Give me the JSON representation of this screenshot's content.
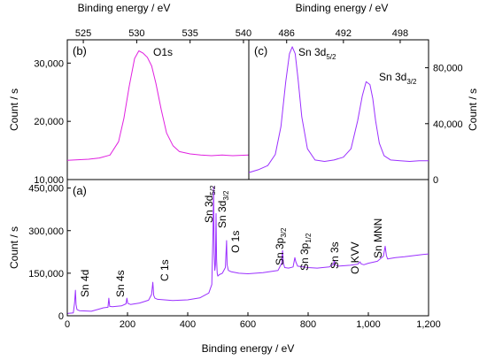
{
  "chart_data": [
    {
      "panel": "(a)",
      "type": "line",
      "xlabel": "Binding energy / eV",
      "ylabel": "Count / s",
      "xlim": [
        0,
        1200
      ],
      "ylim": [
        0,
        480000
      ],
      "x_ticks": [
        0,
        200,
        400,
        600,
        800,
        1000,
        1200
      ],
      "x_tick_labels": [
        "0",
        "200",
        "400",
        "600",
        "800",
        "1,000",
        "1,200"
      ],
      "y_ticks": [
        0,
        150000,
        300000,
        450000
      ],
      "y_tick_labels": [
        "0",
        "150,000",
        "300,000",
        "450,000"
      ],
      "color": "#9B30FF",
      "series": [
        {
          "x": [
            0,
            20,
            24,
            27,
            29,
            32,
            40,
            80,
            110,
            120,
            135,
            138,
            141,
            150,
            180,
            195,
            198,
            201,
            210,
            240,
            270,
            280,
            284,
            287,
            291,
            300,
            350,
            400,
            440,
            470,
            480,
            484,
            486,
            488,
            490,
            492,
            494,
            496,
            498,
            500,
            505,
            515,
            525,
            529,
            531,
            535,
            545,
            570,
            600,
            650,
            700,
            712,
            715,
            718,
            722,
            735,
            750,
            754,
            756,
            759,
            765,
            800,
            830,
            870,
            884,
            887,
            890,
            900,
            940,
            965,
            972,
            976,
            985,
            1000,
            1030,
            1050,
            1056,
            1060,
            1064,
            1072,
            1090,
            1120,
            1150,
            1180,
            1200
          ],
          "y": [
            8000,
            10000,
            45000,
            90000,
            40000,
            22000,
            18000,
            16000,
            25000,
            28000,
            30000,
            62000,
            33000,
            32000,
            35000,
            42000,
            62000,
            44000,
            40000,
            45000,
            55000,
            75000,
            118000,
            72000,
            62000,
            58000,
            54000,
            56000,
            63000,
            80000,
            110000,
            300000,
            455000,
            220000,
            160000,
            180000,
            360000,
            200000,
            150000,
            140000,
            145000,
            150000,
            170000,
            265000,
            180000,
            160000,
            155000,
            150000,
            148000,
            152000,
            160000,
            185000,
            230000,
            185000,
            170000,
            168000,
            172000,
            195000,
            205000,
            190000,
            175000,
            170000,
            168000,
            172000,
            182000,
            195000,
            180000,
            175000,
            178000,
            182000,
            190000,
            183000,
            180000,
            185000,
            192000,
            210000,
            245000,
            212000,
            200000,
            202000,
            205000,
            208000,
            212000,
            216000,
            218000
          ]
        }
      ],
      "peak_labels": [
        {
          "text": "Sn 4d",
          "x": 25,
          "y": 70000
        },
        {
          "text": "Sn 4s",
          "x": 155,
          "y": 60000
        },
        {
          "text": "C 1s",
          "x": 300,
          "y": 108000
        },
        {
          "text": "Sn 3d5/2 *",
          "x": 474,
          "y": 330000
        },
        {
          "text": "Sn 3d3/2 *",
          "x": 507,
          "y": 320000
        },
        {
          "text": "O 1s",
          "x": 548,
          "y": 250000
        },
        {
          "text": "Sn 3p3/2 *",
          "x": 707,
          "y": 210000
        },
        {
          "text": "Sn 3p1/2 *",
          "x": 787,
          "y": 200000
        },
        {
          "text": "Sn 3s",
          "x": 886,
          "y": 205000
        },
        {
          "text": "O KVV",
          "x": 970,
          "y": 205000
        },
        {
          "text": "Sn MNN",
          "x": 1045,
          "y": 235000
        }
      ],
      "labels_text": {
        "sn4d": "Sn 4d",
        "sn4s": "Sn 4s",
        "c1s": "C 1s",
        "o1s": "O 1s",
        "sn3s": "Sn 3s",
        "okvv": "O KVV",
        "snmnn": "Sn MNN",
        "sn3d_base": "Sn 3d",
        "sn3d_sub1": "5/2",
        "sn3d_sub2": "3/2",
        "sn3p_base": "Sn 3p",
        "sn3p_sub1": "3/2",
        "sn3p_sub2": "1/2"
      }
    },
    {
      "panel": "(b)",
      "type": "line",
      "xlabel": "Binding energy / eV",
      "ylabel": "Count / s",
      "xlim": [
        523.5,
        540.5
      ],
      "ylim": [
        10000,
        34000
      ],
      "x_ticks": [
        525,
        530,
        535,
        540
      ],
      "x_tick_labels": [
        "525",
        "530",
        "535",
        "540"
      ],
      "y_ticks": [
        10000,
        20000,
        30000
      ],
      "y_tick_labels": [
        "10,000",
        "20,000",
        "30,000"
      ],
      "color": "#E020E0",
      "annotation": "O1s",
      "series": [
        {
          "x": [
            523.5,
            524.5,
            525.5,
            526.5,
            527.5,
            528.3,
            528.8,
            529.3,
            529.8,
            530.2,
            530.6,
            531.0,
            531.4,
            531.8,
            532.3,
            532.8,
            533.4,
            534.0,
            535.0,
            536.0,
            537.0,
            538.0,
            539.0,
            540.5
          ],
          "y": [
            13300,
            13400,
            13500,
            13700,
            14200,
            16500,
            20500,
            26000,
            30800,
            32100,
            31700,
            31000,
            29500,
            26500,
            22000,
            18000,
            15800,
            14800,
            14400,
            14200,
            14100,
            14200,
            14100,
            14200
          ]
        }
      ]
    },
    {
      "panel": "(c)",
      "type": "line",
      "xlabel": "Binding energy / eV",
      "ylabel": "Count / s",
      "xlim": [
        482,
        501
      ],
      "ylim": [
        0,
        100000
      ],
      "x_ticks": [
        486,
        492,
        498
      ],
      "x_tick_labels": [
        "486",
        "492",
        "498"
      ],
      "y_ticks": [
        0,
        40000,
        80000
      ],
      "y_tick_labels": [
        "0",
        "40,000",
        "80,000"
      ],
      "color": "#9B30FF",
      "annotation_1": {
        "base": "Sn 3d",
        "sub": "5/2"
      },
      "annotation_2": {
        "base": "Sn 3d",
        "sub": "3/2"
      },
      "series": [
        {
          "x": [
            482.0,
            483.0,
            484.0,
            484.8,
            485.4,
            485.9,
            486.3,
            486.6,
            486.9,
            487.2,
            487.6,
            488.2,
            489.0,
            490.0,
            491.0,
            492.0,
            492.8,
            493.5,
            494.0,
            494.4,
            494.8,
            495.1,
            495.4,
            495.8,
            496.3,
            497.0,
            498.0,
            499.0,
            500.0,
            501.0
          ],
          "y": [
            5000,
            7000,
            10000,
            18000,
            38000,
            70000,
            90000,
            95000,
            90000,
            72000,
            45000,
            22000,
            14000,
            13000,
            14000,
            16000,
            22000,
            42000,
            60000,
            70000,
            68000,
            58000,
            42000,
            26000,
            17000,
            14000,
            13500,
            13000,
            13500,
            13500
          ]
        }
      ]
    }
  ]
}
